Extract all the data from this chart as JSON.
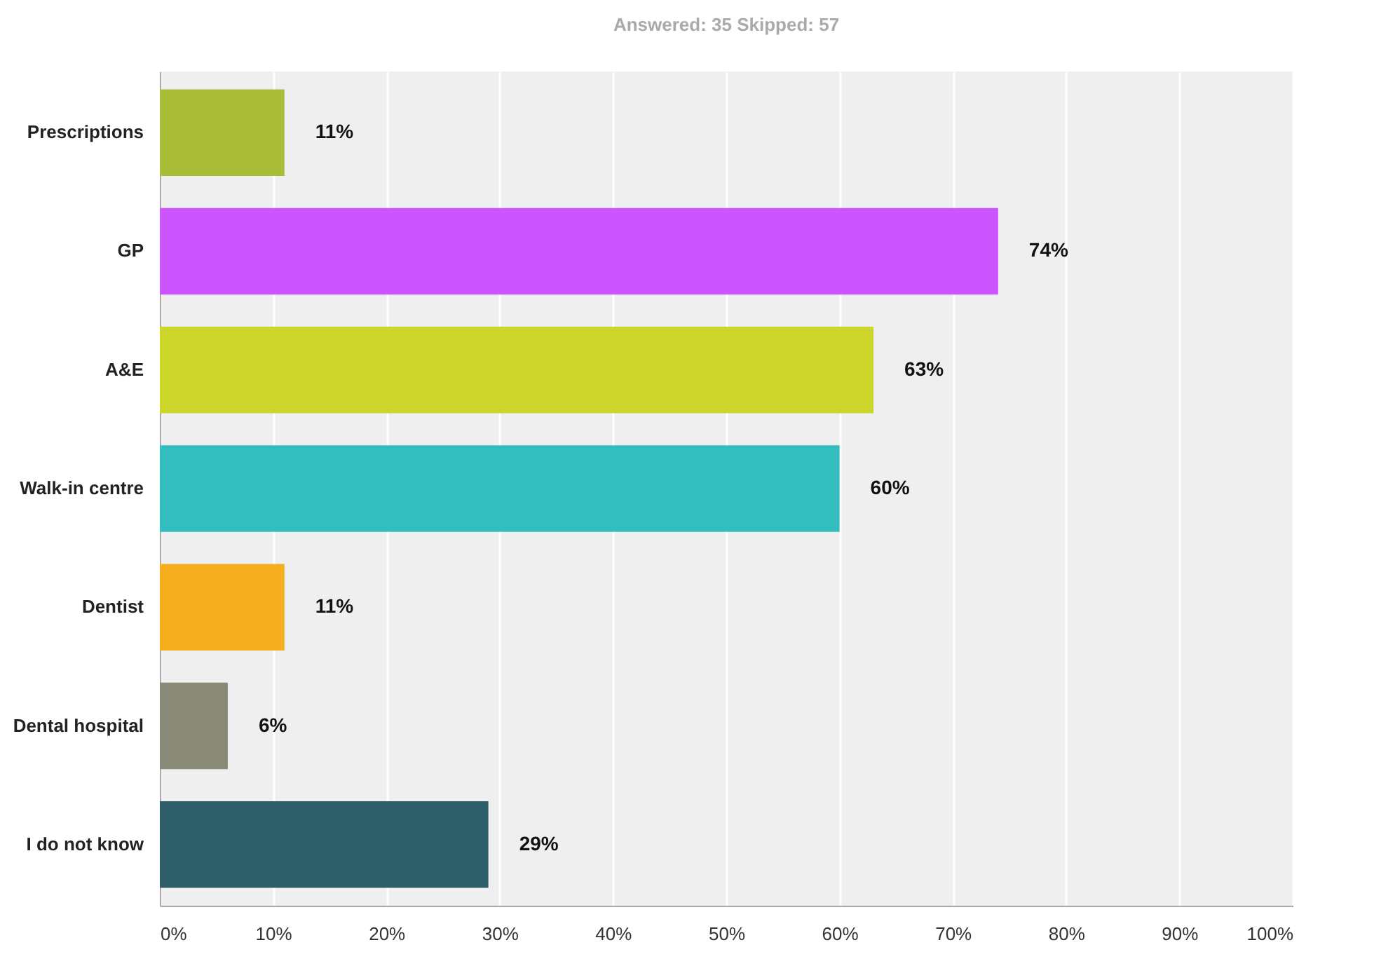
{
  "chart_data": {
    "type": "bar",
    "orientation": "horizontal",
    "title": "Answered: 35    Skipped: 57",
    "categories": [
      "Prescriptions",
      "GP",
      "A&E",
      "Walk-in centre",
      "Dentist",
      "Dental hospital",
      "I do not know"
    ],
    "values": [
      11,
      74,
      63,
      60,
      11,
      6,
      29
    ],
    "value_labels": [
      "11%",
      "74%",
      "63%",
      "60%",
      "11%",
      "6%",
      "29%"
    ],
    "colors": [
      "#a9bd38",
      "#cc55ff",
      "#ccd52a",
      "#33bdbf",
      "#f5ae1e",
      "#8a8a78",
      "#2e5e68"
    ],
    "xlim": [
      0,
      100
    ],
    "xticks": [
      {
        "value": 0,
        "label": "0%"
      },
      {
        "value": 10,
        "label": "10%"
      },
      {
        "value": 20,
        "label": "20%"
      },
      {
        "value": 30,
        "label": "30%"
      },
      {
        "value": 40,
        "label": "40%"
      },
      {
        "value": 50,
        "label": "50%"
      },
      {
        "value": 60,
        "label": "60%"
      },
      {
        "value": 70,
        "label": "70%"
      },
      {
        "value": 80,
        "label": "80%"
      },
      {
        "value": 90,
        "label": "90%"
      },
      {
        "value": 100,
        "label": "100%"
      }
    ],
    "grid": "x",
    "legend": false
  }
}
